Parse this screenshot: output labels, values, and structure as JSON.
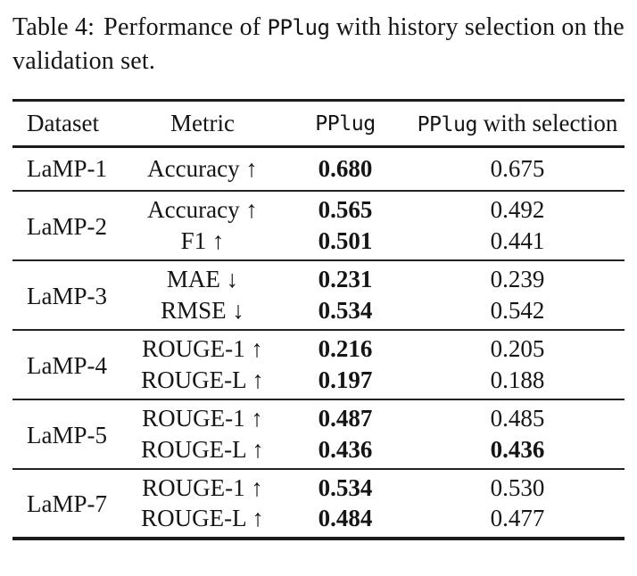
{
  "caption": {
    "label": "Table 4:",
    "part1": "Performance of",
    "mono": "PPlug",
    "part2": "with history selection on the validation set."
  },
  "table": {
    "headers": {
      "dataset": "Dataset",
      "metric": "Metric",
      "pplug": "PPlug",
      "selection_mono": "PPlug",
      "selection_rest": " with selection"
    },
    "rows": [
      {
        "dataset": "LaMP-1",
        "metrics": [
          {
            "name": "Accuracy ↑",
            "pplug": "0.680",
            "pplug_bold": true,
            "selection": "0.675",
            "selection_bold": false
          }
        ]
      },
      {
        "dataset": "LaMP-2",
        "metrics": [
          {
            "name": "Accuracy ↑",
            "pplug": "0.565",
            "pplug_bold": true,
            "selection": "0.492",
            "selection_bold": false
          },
          {
            "name": "F1 ↑",
            "pplug": "0.501",
            "pplug_bold": true,
            "selection": "0.441",
            "selection_bold": false
          }
        ]
      },
      {
        "dataset": "LaMP-3",
        "metrics": [
          {
            "name": "MAE ↓",
            "pplug": "0.231",
            "pplug_bold": true,
            "selection": "0.239",
            "selection_bold": false
          },
          {
            "name": "RMSE ↓",
            "pplug": "0.534",
            "pplug_bold": true,
            "selection": "0.542",
            "selection_bold": false
          }
        ]
      },
      {
        "dataset": "LaMP-4",
        "metrics": [
          {
            "name": "ROUGE-1 ↑",
            "pplug": "0.216",
            "pplug_bold": true,
            "selection": "0.205",
            "selection_bold": false
          },
          {
            "name": "ROUGE-L ↑",
            "pplug": "0.197",
            "pplug_bold": true,
            "selection": "0.188",
            "selection_bold": false
          }
        ]
      },
      {
        "dataset": "LaMP-5",
        "metrics": [
          {
            "name": "ROUGE-1 ↑",
            "pplug": "0.487",
            "pplug_bold": true,
            "selection": "0.485",
            "selection_bold": false
          },
          {
            "name": "ROUGE-L ↑",
            "pplug": "0.436",
            "pplug_bold": true,
            "selection": "0.436",
            "selection_bold": true
          }
        ]
      },
      {
        "dataset": "LaMP-7",
        "metrics": [
          {
            "name": "ROUGE-1 ↑",
            "pplug": "0.534",
            "pplug_bold": true,
            "selection": "0.530",
            "selection_bold": false
          },
          {
            "name": "ROUGE-L ↑",
            "pplug": "0.484",
            "pplug_bold": true,
            "selection": "0.477",
            "selection_bold": false
          }
        ]
      }
    ]
  },
  "colors": {
    "text": "#151515",
    "rule": "#1b1b1b",
    "background": "#ffffff"
  }
}
